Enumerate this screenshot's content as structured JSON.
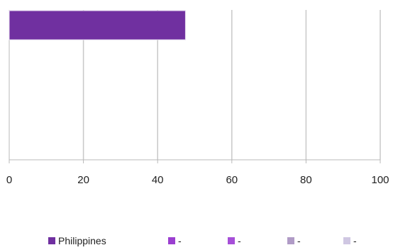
{
  "chart_data": {
    "type": "bar",
    "orientation": "horizontal",
    "categories": [
      ""
    ],
    "series": [
      {
        "name": "Philippines",
        "values": [
          47.5
        ],
        "color": "#7030a0"
      },
      {
        "name": "-",
        "values": [
          null
        ],
        "color": "#9b3fd0"
      },
      {
        "name": "-",
        "values": [
          null
        ],
        "color": "#a64fd8"
      },
      {
        "name": "-",
        "values": [
          null
        ],
        "color": "#b09bc6"
      },
      {
        "name": "-",
        "values": [
          null
        ],
        "color": "#cfc7e2"
      }
    ],
    "xlim": [
      0,
      100
    ],
    "x_ticks": [
      0,
      20,
      40,
      60,
      80,
      100
    ],
    "x_tick_labels": [
      "0",
      "20",
      "40",
      "60",
      "80",
      "100"
    ],
    "grid": "vertical",
    "legend_position": "bottom",
    "title": "",
    "xlabel": "",
    "ylabel": ""
  }
}
